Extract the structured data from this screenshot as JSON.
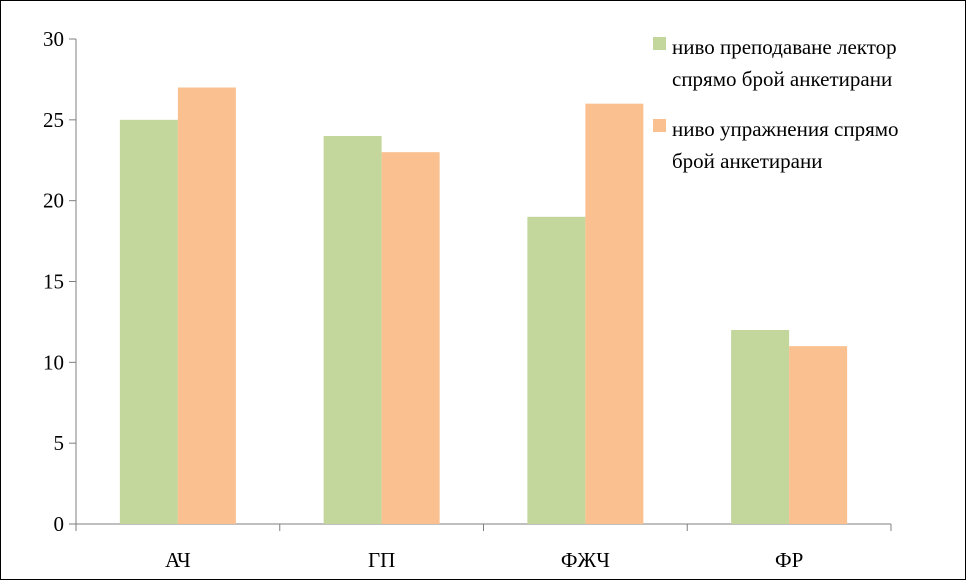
{
  "chart_data": {
    "type": "bar",
    "categories": [
      "АЧ",
      "ГП",
      "ФЖЧ",
      "ФР"
    ],
    "series": [
      {
        "name": "ниво преподаване лектор спрямо брой анкетирани",
        "values": [
          25,
          24,
          19,
          12
        ],
        "color": "#c3d69b"
      },
      {
        "name": "ниво упражнения спрямо брой анкетирани",
        "values": [
          27,
          23,
          26,
          11
        ],
        "color": "#fac090"
      }
    ],
    "ylim": [
      0,
      30
    ],
    "yticks": [
      0,
      5,
      10,
      15,
      20,
      25,
      30
    ],
    "grid": false,
    "legend_position": "top-right",
    "legend_lines": [
      [
        "ниво преподаване лектор",
        "спрямо брой анкетирани"
      ],
      [
        "ниво упражнения спрямо",
        "брой анкетирани"
      ]
    ]
  }
}
